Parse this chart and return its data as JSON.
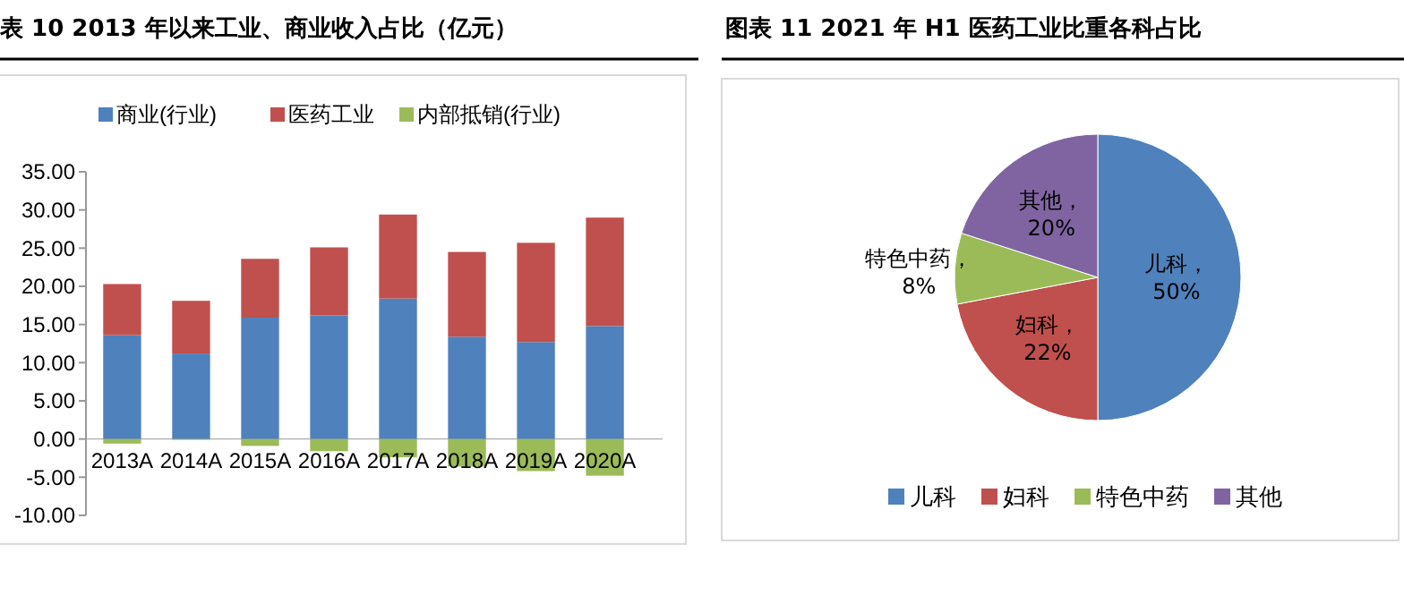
{
  "chart_data": [
    {
      "type": "bar",
      "title": "表 10 2013 年以来工业、商业收入占比（亿元）",
      "stacked": true,
      "categories": [
        "2013A",
        "2014A",
        "2015A",
        "2016A",
        "2017A",
        "2018A",
        "2019A",
        "2020A"
      ],
      "series": [
        {
          "name": "商业(行业)",
          "color": "#4f81bd",
          "values": [
            13.6,
            11.2,
            15.9,
            16.2,
            18.4,
            13.4,
            12.7,
            14.8
          ]
        },
        {
          "name": "医药工业",
          "color": "#c0504d",
          "values": [
            6.7,
            6.9,
            7.7,
            8.9,
            11.0,
            11.1,
            13.0,
            14.2
          ]
        },
        {
          "name": "内部抵销(行业)",
          "color": "#9bbb59",
          "values": [
            -0.6,
            -0.1,
            -0.9,
            -1.6,
            -2.4,
            -3.6,
            -4.2,
            -4.8
          ]
        }
      ],
      "ylim": [
        -10,
        35
      ],
      "yticks": [
        {
          "value": 35,
          "label": "35.00"
        },
        {
          "value": 30,
          "label": "30.00"
        },
        {
          "value": 25,
          "label": "25.00"
        },
        {
          "value": 20,
          "label": "20.00"
        },
        {
          "value": 15,
          "label": "15.00"
        },
        {
          "value": 10,
          "label": "10.00"
        },
        {
          "value": 5,
          "label": "5.00"
        },
        {
          "value": 0,
          "label": "0.00"
        },
        {
          "value": -5,
          "label": "-5.00"
        },
        {
          "value": -10,
          "label": "-10.00"
        }
      ],
      "grid": false,
      "legend": "top"
    },
    {
      "type": "pie",
      "title": "图表 11 2021 年 H1 医药工业比重各科占比",
      "categories": [
        "儿科",
        "妇科",
        "特色中药",
        "其他"
      ],
      "values": [
        50,
        22,
        8,
        20
      ],
      "colors": [
        "#4f81bd",
        "#c0504d",
        "#9bbb59",
        "#8064a2"
      ],
      "value_labels": [
        "儿科，50%",
        "妇科，22%",
        "特色中药，8%",
        "其他，20%"
      ],
      "legend": "bottom"
    }
  ]
}
